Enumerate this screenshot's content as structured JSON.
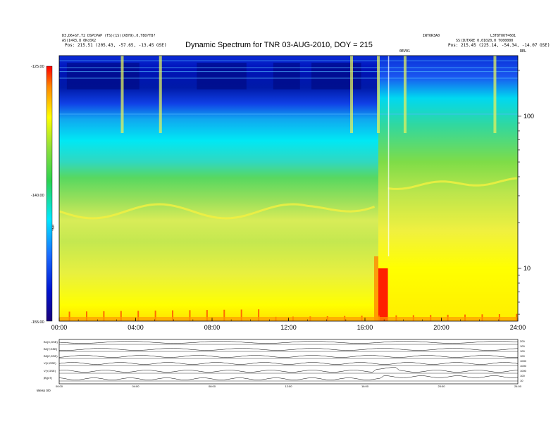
{
  "header": {
    "left_line1": "D3,D6+ST,T2 DSPCPAP (TS)(1S)(X8Y9),0,T8O?T8?",
    "left_line2": "AS(1=R3,8 0Kc0X2",
    "left_pos": "Pos: 215.51 (205.43, -57.65, -13.45 GSE)",
    "right_id1": "IWTOR3A0",
    "right_id2": "L3T8TOOT=601",
    "right_line2": "SS)IUTXRE 0,01020,0 TO00000",
    "right_pos": "Pos: 215.45 (225.14, -54.34, -14.07 GSE)",
    "right_tag": "REL",
    "marker": "0EV01"
  },
  "title": "Dynamic Spectrum for TNR 03-AUG-2010, DOY = 215",
  "colorbar": {
    "ticks": [
      "-125.00",
      "-140.00",
      "-155.00"
    ],
    "label": "TNR"
  },
  "colors": {
    "bar": [
      "#1a0078",
      "#0014d0",
      "#1a6cff",
      "#00e8ff",
      "#2cd250",
      "#8ee03a",
      "#ffff00",
      "#ff8800",
      "#ff0000"
    ]
  },
  "chart_data": {
    "type": "heatmap",
    "title": "Dynamic Spectrum for TNR 03-AUG-2010, DOY = 215",
    "x_unit": "hours UT",
    "xlim": [
      0,
      24
    ],
    "x_ticks": [
      "00:00",
      "04:00",
      "08:00",
      "12:00",
      "16:00",
      "20:00",
      "24:00"
    ],
    "y_scale": "log",
    "ylim": [
      4.5,
      250
    ],
    "y_ticks": [
      {
        "value": 100,
        "label": "100"
      },
      {
        "value": 10,
        "label": "10"
      }
    ],
    "color_range": [
      -155,
      -125
    ],
    "bright_bursts_hours": [
      3.3,
      5.3,
      15.3,
      16.7,
      18.1,
      22.8
    ],
    "intense_event_hours": [
      16.7,
      17.2
    ]
  },
  "lower_panel": {
    "labels": [
      "B1(X,GSE)",
      "B2(Y,GSE)",
      "B3(Z,GSE)",
      "V(X,GSE)",
      "V(Y,GSE)",
      "|B|(nT)"
    ],
    "right_labels": [
      "200",
      "100",
      "100",
      "100",
      "1000",
      "1000",
      "1000",
      "100",
      "10"
    ],
    "ticks": [
      "00:00",
      "04:00",
      "08:00",
      "12:00",
      "16:00",
      "20:00",
      "24:00"
    ],
    "corner": "Weiss  0/0"
  }
}
